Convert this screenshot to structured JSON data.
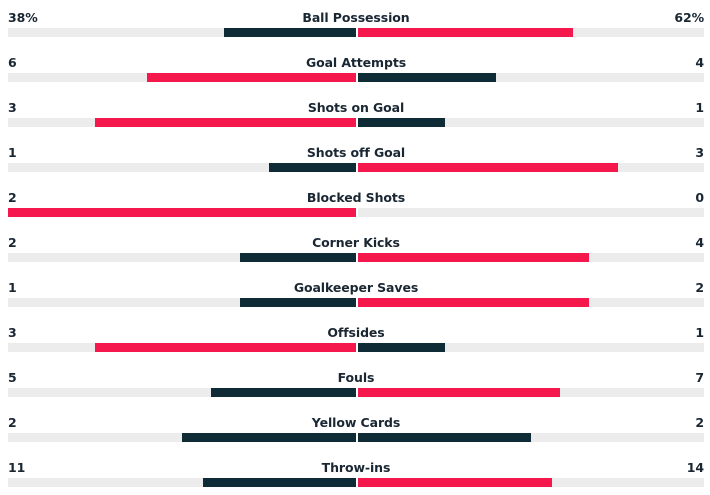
{
  "colors": {
    "winner": "#f5184c",
    "loser": "#0f2b35",
    "track": "#ececec",
    "text": "#1a2733"
  },
  "stats": [
    {
      "label": "Ball Possession",
      "home": "38%",
      "away": "62%",
      "home_value": 38,
      "away_value": 62,
      "home_fill": 0.38,
      "away_fill": 0.62
    },
    {
      "label": "Goal Attempts",
      "home": "6",
      "away": "4",
      "home_value": 6,
      "away_value": 4,
      "home_fill": 0.6,
      "away_fill": 0.4
    },
    {
      "label": "Shots on Goal",
      "home": "3",
      "away": "1",
      "home_value": 3,
      "away_value": 1,
      "home_fill": 0.75,
      "away_fill": 0.25
    },
    {
      "label": "Shots off Goal",
      "home": "1",
      "away": "3",
      "home_value": 1,
      "away_value": 3,
      "home_fill": 0.25,
      "away_fill": 0.75
    },
    {
      "label": "Blocked Shots",
      "home": "2",
      "away": "0",
      "home_value": 2,
      "away_value": 0,
      "home_fill": 1.0,
      "away_fill": 0.0
    },
    {
      "label": "Corner Kicks",
      "home": "2",
      "away": "4",
      "home_value": 2,
      "away_value": 4,
      "home_fill": 0.333,
      "away_fill": 0.667
    },
    {
      "label": "Goalkeeper Saves",
      "home": "1",
      "away": "2",
      "home_value": 1,
      "away_value": 2,
      "home_fill": 0.333,
      "away_fill": 0.667
    },
    {
      "label": "Offsides",
      "home": "3",
      "away": "1",
      "home_value": 3,
      "away_value": 1,
      "home_fill": 0.75,
      "away_fill": 0.25
    },
    {
      "label": "Fouls",
      "home": "5",
      "away": "7",
      "home_value": 5,
      "away_value": 7,
      "home_fill": 0.417,
      "away_fill": 0.583
    },
    {
      "label": "Yellow Cards",
      "home": "2",
      "away": "2",
      "home_value": 2,
      "away_value": 2,
      "home_fill": 0.5,
      "away_fill": 0.5
    },
    {
      "label": "Throw-ins",
      "home": "11",
      "away": "14",
      "home_value": 11,
      "away_value": 14,
      "home_fill": 0.44,
      "away_fill": 0.56
    }
  ]
}
